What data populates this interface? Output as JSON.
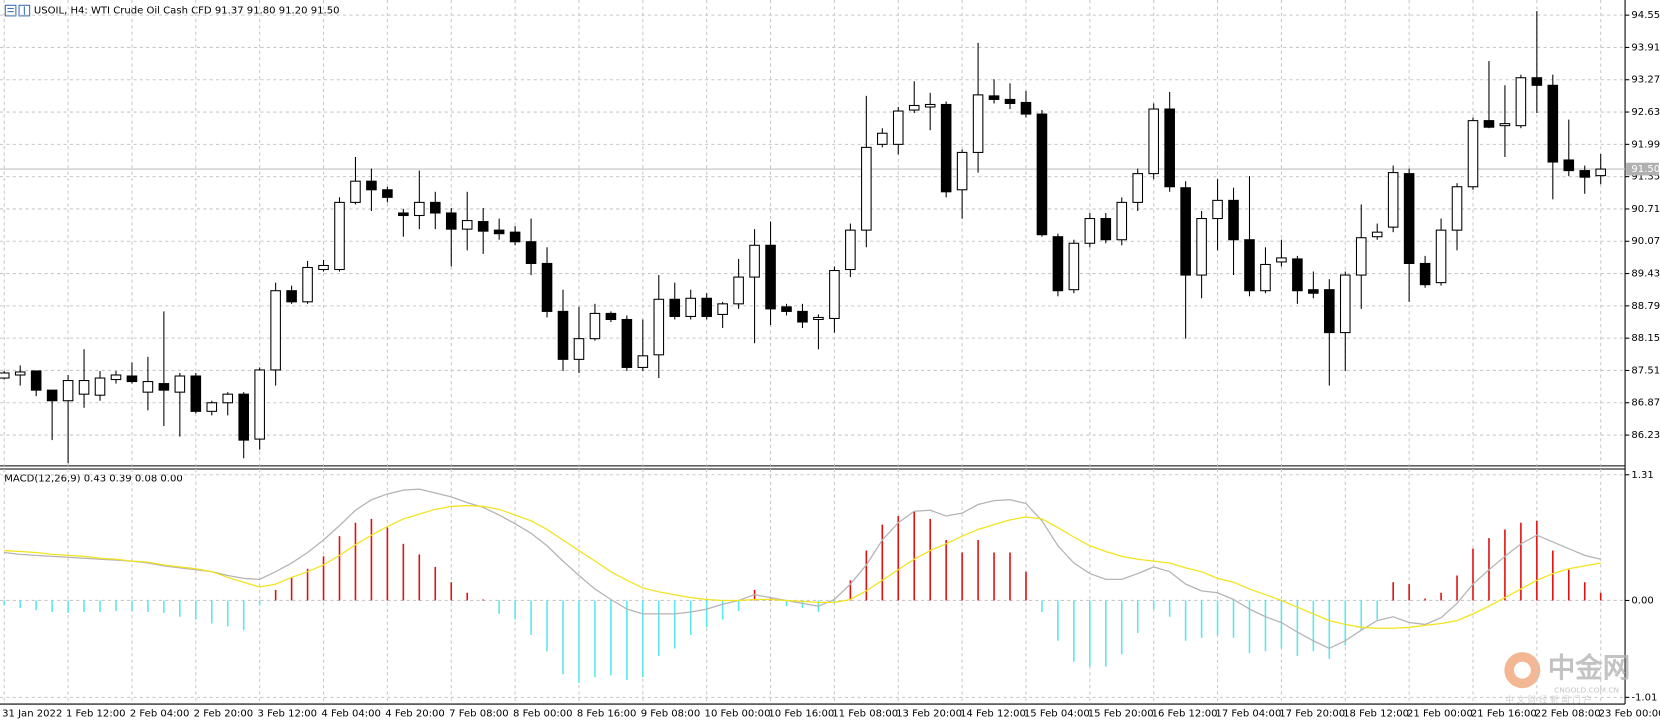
{
  "chart_data": [
    {
      "type": "candlestick",
      "title": "USOIL, H4:  WTI Crude Oil Cash CFD  91.37 91.80 91.20 91.50",
      "categories": [
        "31 Jan 2022",
        null,
        null,
        null,
        "1 Feb 12:00",
        null,
        null,
        null,
        "2 Feb 04:00",
        null,
        null,
        null,
        "2 Feb 20:00",
        null,
        null,
        null,
        "3 Feb 12:00",
        null,
        null,
        null,
        "4 Feb 04:00",
        null,
        null,
        null,
        "4 Feb 20:00",
        null,
        null,
        null,
        "7 Feb 08:00",
        null,
        null,
        null,
        "8 Feb 00:00",
        null,
        null,
        null,
        "8 Feb 16:00",
        null,
        null,
        null,
        "9 Feb 08:00",
        null,
        null,
        null,
        "10 Feb 00:00",
        null,
        null,
        null,
        "10 Feb 16:00",
        null,
        null,
        null,
        "11 Feb 08:00",
        null,
        null,
        null,
        "13 Feb 20:00",
        null,
        null,
        null,
        "14 Feb 12:00",
        null,
        null,
        null,
        "15 Feb 04:00",
        null,
        null,
        null,
        "15 Feb 20:00",
        null,
        null,
        null,
        "16 Feb 12:00",
        null,
        null,
        null,
        "17 Feb 04:00",
        null,
        null,
        null,
        "17 Feb 20:00",
        null,
        null,
        null,
        "18 Feb 12:00",
        null,
        null,
        null,
        "21 Feb 00:00",
        null,
        null,
        null,
        "21 Feb 16:00",
        null,
        null,
        null,
        "22 Feb 08:00",
        null,
        null,
        null,
        "23 Feb 00:00"
      ],
      "open": [
        87.36,
        87.42,
        87.5,
        87.12,
        86.91,
        87.04,
        87.02,
        87.33,
        87.4,
        87.08,
        87.25,
        87.08,
        87.4,
        86.7,
        86.87,
        87.04,
        86.15,
        87.52,
        89.09,
        88.87,
        89.51,
        89.51,
        90.84,
        91.26,
        91.09,
        90.63,
        90.58,
        90.84,
        90.63,
        90.31,
        90.46,
        90.29,
        90.25,
        90.06,
        89.63,
        88.68,
        87.73,
        88.14,
        88.64,
        88.52,
        87.57,
        87.82,
        88.92,
        88.58,
        88.94,
        88.62,
        88.83,
        89.36,
        89.99,
        88.77,
        88.68,
        88.52,
        88.54,
        89.51,
        90.29,
        91.99,
        91.99,
        92.67,
        92.73,
        92.78,
        91.09,
        91.83,
        92.95,
        92.88,
        92.82,
        92.59,
        90.16,
        89.11,
        90.03,
        90.52,
        90.1,
        90.84,
        91.41,
        92.69,
        91.13,
        89.4,
        90.52,
        90.88,
        90.1,
        89.09,
        89.66,
        89.72,
        89.11,
        89.11,
        88.26,
        89.4,
        90.16,
        90.35,
        91.41,
        89.63,
        89.25,
        90.29,
        91.15,
        92.46,
        92.36,
        92.36,
        93.31,
        93.16,
        91.68,
        91.47,
        91.37
      ],
      "high": [
        87.5,
        87.61,
        87.5,
        87.12,
        87.42,
        87.93,
        87.5,
        87.5,
        87.67,
        87.78,
        88.68,
        87.46,
        87.46,
        86.91,
        87.08,
        87.08,
        87.57,
        89.25,
        89.19,
        89.68,
        89.7,
        90.94,
        91.74,
        91.51,
        91.15,
        90.71,
        91.47,
        91.05,
        90.73,
        91.05,
        90.73,
        90.52,
        90.37,
        90.52,
        89.95,
        89.11,
        88.77,
        88.83,
        88.68,
        88.6,
        88.52,
        89.4,
        89.25,
        89.11,
        89.04,
        88.87,
        89.72,
        90.31,
        90.46,
        88.83,
        88.83,
        88.62,
        89.57,
        90.42,
        92.95,
        92.31,
        92.73,
        93.24,
        93.01,
        92.84,
        91.89,
        94.0,
        93.28,
        93.2,
        93.05,
        92.67,
        90.22,
        90.1,
        90.63,
        90.63,
        90.94,
        91.51,
        92.8,
        93.03,
        91.26,
        90.67,
        91.3,
        91.13,
        91.36,
        89.95,
        90.1,
        89.78,
        89.47,
        89.32,
        89.47,
        90.8,
        90.42,
        91.57,
        91.51,
        89.78,
        90.52,
        91.22,
        92.52,
        93.64,
        93.16,
        93.37,
        94.63,
        93.37,
        92.48,
        91.57,
        91.8
      ],
      "low": [
        87.33,
        87.21,
        87.0,
        86.13,
        85.67,
        86.77,
        86.91,
        87.25,
        87.25,
        86.72,
        86.41,
        86.2,
        86.66,
        86.62,
        86.62,
        85.77,
        85.94,
        87.21,
        88.83,
        88.83,
        89.47,
        89.47,
        90.8,
        90.67,
        90.84,
        90.16,
        90.31,
        90.31,
        89.57,
        89.89,
        89.82,
        90.1,
        89.99,
        89.4,
        88.56,
        87.5,
        87.46,
        88.1,
        88.47,
        87.5,
        87.5,
        87.36,
        88.52,
        88.52,
        88.52,
        88.35,
        88.73,
        88.05,
        88.41,
        88.6,
        88.35,
        87.93,
        88.26,
        89.36,
        89.95,
        91.93,
        91.79,
        92.61,
        92.27,
        90.94,
        90.52,
        91.43,
        92.8,
        92.69,
        92.52,
        90.16,
        88.98,
        89.04,
        89.95,
        90.03,
        89.99,
        90.67,
        91.3,
        91.05,
        88.14,
        88.94,
        89.89,
        89.4,
        88.98,
        89.04,
        89.57,
        88.83,
        88.94,
        87.21,
        87.5,
        88.73,
        90.1,
        90.25,
        88.87,
        89.15,
        89.19,
        89.89,
        91.09,
        92.31,
        91.74,
        92.31,
        92.61,
        90.9,
        91.36,
        91.01,
        91.2
      ],
      "close": [
        87.46,
        87.48,
        87.12,
        86.91,
        87.31,
        87.31,
        87.36,
        87.42,
        87.29,
        87.29,
        87.12,
        87.4,
        86.7,
        86.87,
        87.04,
        86.13,
        87.52,
        89.09,
        88.87,
        89.55,
        89.59,
        90.84,
        91.26,
        91.09,
        90.94,
        90.58,
        90.84,
        90.63,
        90.31,
        90.48,
        90.27,
        90.22,
        90.06,
        89.63,
        88.68,
        87.73,
        88.14,
        88.64,
        88.52,
        87.57,
        87.8,
        88.92,
        88.58,
        88.94,
        88.58,
        88.83,
        89.36,
        89.99,
        88.73,
        88.68,
        88.47,
        88.56,
        89.49,
        90.29,
        91.93,
        92.21,
        92.65,
        92.76,
        92.78,
        91.05,
        91.83,
        92.97,
        92.88,
        92.8,
        92.59,
        90.2,
        89.09,
        90.03,
        90.52,
        90.1,
        90.84,
        91.41,
        92.69,
        91.15,
        89.4,
        90.52,
        90.88,
        90.1,
        89.09,
        89.61,
        89.74,
        89.09,
        89.04,
        88.26,
        89.4,
        90.14,
        90.25,
        91.43,
        89.63,
        89.21,
        90.29,
        91.15,
        92.46,
        92.33,
        92.4,
        93.31,
        93.16,
        91.64,
        91.47,
        91.34,
        91.5
      ],
      "up_color": "#ffffff",
      "down_color": "#000000",
      "ylim": [
        85.62,
        94.85
      ],
      "yticks": [
        94.55,
        93.91,
        93.27,
        92.63,
        91.99,
        91.35,
        90.71,
        90.07,
        89.43,
        88.79,
        88.15,
        87.51,
        86.87,
        86.23
      ],
      "grid": true,
      "last_price": {
        "value": 91.5,
        "label": "91.50"
      }
    },
    {
      "type": "macd",
      "title": "MACD(12,26,9) 0.43 0.39 0.08 0.00",
      "series": [
        {
          "type": "bar",
          "color": "#e01010",
          "negative_color": "#5ee6ee",
          "values": [
            -0.05,
            -0.08,
            -0.1,
            -0.12,
            -0.13,
            -0.12,
            -0.12,
            -0.11,
            -0.11,
            -0.12,
            -0.13,
            -0.17,
            -0.2,
            -0.24,
            -0.27,
            -0.31,
            -0.05,
            0.11,
            0.24,
            0.33,
            0.46,
            0.67,
            0.81,
            0.85,
            0.76,
            0.59,
            0.48,
            0.35,
            0.19,
            0.08,
            0.01,
            -0.14,
            -0.2,
            -0.36,
            -0.53,
            -0.77,
            -0.86,
            -0.8,
            -0.78,
            -0.83,
            -0.8,
            -0.58,
            -0.5,
            -0.36,
            -0.28,
            -0.2,
            -0.11,
            0.11,
            0.02,
            -0.06,
            -0.08,
            -0.12,
            -0.03,
            0.21,
            0.52,
            0.79,
            0.88,
            0.93,
            0.85,
            0.63,
            0.5,
            0.63,
            0.5,
            0.5,
            0.3,
            -0.12,
            -0.42,
            -0.64,
            -0.69,
            -0.69,
            -0.56,
            -0.34,
            -0.09,
            -0.17,
            -0.42,
            -0.39,
            -0.36,
            -0.39,
            -0.55,
            -0.53,
            -0.5,
            -0.58,
            -0.53,
            -0.61,
            -0.47,
            -0.31,
            -0.2,
            0.19,
            0.17,
            0.02,
            0.08,
            0.26,
            0.54,
            0.65,
            0.74,
            0.81,
            0.83,
            0.52,
            0.32,
            0.19,
            0.08
          ]
        },
        {
          "type": "line",
          "color": "#b4b4b4",
          "values": [
            0.5,
            0.48,
            0.47,
            0.46,
            0.45,
            0.44,
            0.43,
            0.42,
            0.41,
            0.39,
            0.36,
            0.34,
            0.32,
            0.3,
            0.26,
            0.23,
            0.22,
            0.3,
            0.39,
            0.5,
            0.63,
            0.78,
            0.94,
            1.05,
            1.11,
            1.15,
            1.16,
            1.12,
            1.08,
            1.02,
            0.97,
            0.89,
            0.8,
            0.7,
            0.57,
            0.41,
            0.26,
            0.12,
            0.01,
            -0.09,
            -0.14,
            -0.14,
            -0.14,
            -0.12,
            -0.09,
            -0.04,
            0.0,
            0.06,
            0.03,
            0.0,
            -0.03,
            -0.06,
            0.01,
            0.17,
            0.37,
            0.63,
            0.81,
            0.93,
            0.94,
            0.88,
            0.91,
            1.0,
            1.04,
            1.05,
            1.01,
            0.83,
            0.57,
            0.39,
            0.28,
            0.22,
            0.22,
            0.28,
            0.35,
            0.3,
            0.17,
            0.1,
            0.08,
            0.01,
            -0.09,
            -0.17,
            -0.23,
            -0.33,
            -0.42,
            -0.5,
            -0.42,
            -0.31,
            -0.21,
            -0.17,
            -0.23,
            -0.25,
            -0.18,
            -0.03,
            0.17,
            0.32,
            0.46,
            0.59,
            0.68,
            0.61,
            0.54,
            0.47,
            0.43
          ]
        },
        {
          "type": "line",
          "color": "#f2e31c",
          "values": [
            0.52,
            0.51,
            0.5,
            0.48,
            0.47,
            0.46,
            0.44,
            0.43,
            0.41,
            0.4,
            0.37,
            0.35,
            0.33,
            0.3,
            0.24,
            0.19,
            0.14,
            0.17,
            0.24,
            0.3,
            0.37,
            0.47,
            0.58,
            0.68,
            0.77,
            0.85,
            0.9,
            0.95,
            0.98,
            0.99,
            0.98,
            0.95,
            0.89,
            0.83,
            0.74,
            0.63,
            0.52,
            0.41,
            0.3,
            0.21,
            0.13,
            0.09,
            0.06,
            0.03,
            0.01,
            0.0,
            0.0,
            0.01,
            0.01,
            0.0,
            -0.01,
            -0.02,
            -0.02,
            0.01,
            0.1,
            0.21,
            0.32,
            0.43,
            0.52,
            0.59,
            0.67,
            0.74,
            0.79,
            0.84,
            0.87,
            0.85,
            0.76,
            0.66,
            0.57,
            0.51,
            0.46,
            0.43,
            0.41,
            0.39,
            0.34,
            0.3,
            0.23,
            0.19,
            0.12,
            0.06,
            0.0,
            -0.07,
            -0.14,
            -0.21,
            -0.25,
            -0.28,
            -0.29,
            -0.29,
            -0.28,
            -0.26,
            -0.24,
            -0.21,
            -0.14,
            -0.06,
            0.03,
            0.12,
            0.21,
            0.28,
            0.33,
            0.36,
            0.39
          ]
        }
      ],
      "ylim": [
        -1.08,
        1.37
      ],
      "yticks": [
        1.31,
        {
          "value": 0,
          "label": "0.00"
        },
        -1.01
      ],
      "grid": true
    }
  ],
  "watermark": {
    "brand": "中金网",
    "url": "CNGOLD.COM.CN",
    "tagline": "中 文 财 经 新 闻 门 户"
  }
}
